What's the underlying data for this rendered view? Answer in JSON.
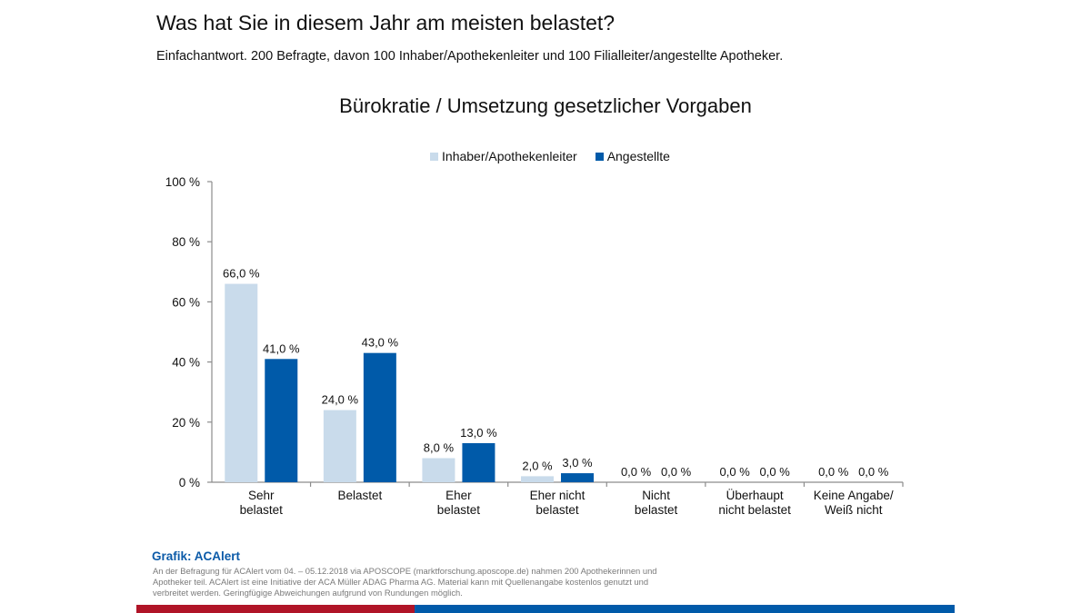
{
  "header": {
    "title": "Was hat Sie in diesem Jahr am meisten belastet?",
    "subtitle": "Einfachantwort. 200 Befragte, davon 100 Inhaber/Apothekenleiter und 100 Filialleiter/angestellte Apotheker."
  },
  "chart_data": {
    "type": "bar",
    "title": "Bürokratie / Umsetzung gesetzlicher Vorgaben",
    "xlabel": "",
    "ylabel": "",
    "ylim": [
      0,
      100
    ],
    "yticks": [
      0,
      20,
      40,
      60,
      80,
      100
    ],
    "ytick_labels": [
      "0 %",
      "20 %",
      "40 %",
      "60 %",
      "80 %",
      "100 %"
    ],
    "grid": false,
    "legend_position": "top-center",
    "categories": [
      [
        "Sehr",
        "belastet"
      ],
      [
        "Belastet"
      ],
      [
        "Eher",
        "belastet"
      ],
      [
        "Eher nicht",
        "belastet"
      ],
      [
        "Nicht",
        "belastet"
      ],
      [
        "Überhaupt",
        "nicht belastet"
      ],
      [
        "Keine Angabe/",
        "Weiß nicht"
      ]
    ],
    "series": [
      {
        "name": "Inhaber/Apothekenleiter",
        "color": "#c9dbeb",
        "values": [
          66.0,
          24.0,
          8.0,
          2.0,
          0.0,
          0.0,
          0.0
        ],
        "labels": [
          "66,0 %",
          "24,0 %",
          "8,0 %",
          "2,0 %",
          "0,0 %",
          "0,0 %",
          "0,0 %"
        ]
      },
      {
        "name": "Angestellte",
        "color": "#005aa9",
        "values": [
          41.0,
          43.0,
          13.0,
          3.0,
          0.0,
          0.0,
          0.0
        ],
        "labels": [
          "41,0 %",
          "43,0 %",
          "13,0 %",
          "3,0 %",
          "0,0 %",
          "0,0 %",
          "0,0 %"
        ]
      }
    ]
  },
  "footer": {
    "source": "Grafik: ACAlert",
    "note": "An der Befragung für ACAlert vom 04. – 05.12.2018 via APOSCOPE (marktforschung.aposcope.de) nahmen 200 Apothekerinnen und Apotheker teil. ACAlert ist eine Initiative der ACA Müller ADAG Pharma AG. Material kann mit Quellenangabe kostenlos genutzt und verbreitet werden. Geringfügige Abweichungen aufgrund von Rundungen möglich."
  },
  "colors": {
    "accent_red": "#b01427",
    "accent_blue": "#005aa9"
  }
}
